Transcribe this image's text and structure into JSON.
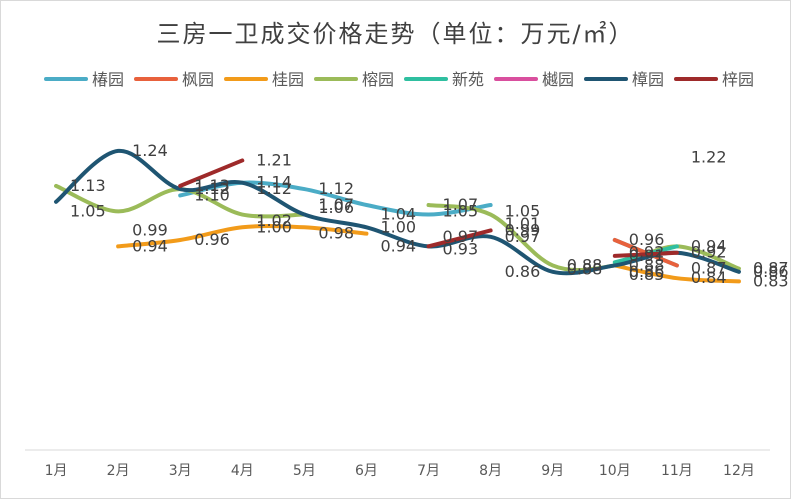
{
  "chart_data": {
    "type": "line",
    "title": "三房一卫成交价格走势（单位：万元/㎡）",
    "xlabel": "",
    "ylabel": "",
    "categories": [
      "1月",
      "2月",
      "3月",
      "4月",
      "5月",
      "6月",
      "7月",
      "8月",
      "9月",
      "10月",
      "11月",
      "12月"
    ],
    "ylim": [
      0.3,
      1.4
    ],
    "legend_position": "top",
    "grid": false,
    "series": [
      {
        "name": "椿园",
        "color": "#4bacc6",
        "values": [
          null,
          null,
          1.1,
          1.14,
          1.12,
          1.07,
          1.04,
          1.07,
          null,
          0.96,
          0.88,
          null
        ]
      },
      {
        "name": "枫园",
        "color": "#e8613c",
        "values": [
          null,
          null,
          null,
          null,
          null,
          null,
          null,
          null,
          null,
          0.96,
          0.88,
          null
        ]
      },
      {
        "name": "桂园",
        "color": "#f29b1a",
        "values": [
          null,
          0.94,
          0.96,
          1.0,
          1.0,
          0.98,
          null,
          null,
          null,
          0.88,
          0.84,
          0.83
        ]
      },
      {
        "name": "榕园",
        "color": "#9bbb59",
        "values": [
          1.13,
          1.05,
          1.12,
          1.04,
          1.04,
          null,
          1.07,
          1.04,
          0.88,
          0.88,
          0.94,
          0.87
        ]
      },
      {
        "name": "新苑",
        "color": "#2fbfa0",
        "values": [
          null,
          null,
          null,
          null,
          null,
          null,
          null,
          null,
          null,
          0.89,
          0.94,
          null
        ]
      },
      {
        "name": "樾园",
        "color": "#d94f9e",
        "values": [
          null,
          null,
          null,
          null,
          null,
          null,
          null,
          null,
          null,
          null,
          null,
          null
        ]
      },
      {
        "name": "樟园",
        "color": "#1f5572",
        "values": [
          1.08,
          1.24,
          1.12,
          1.14,
          1.04,
          1.0,
          0.94,
          0.97,
          0.86,
          0.88,
          0.92,
          0.86
        ]
      },
      {
        "name": "梓园",
        "color": "#9e2a2a",
        "values": [
          null,
          null,
          1.13,
          1.21,
          null,
          null,
          0.94,
          0.99,
          null,
          0.91,
          0.92,
          null
        ]
      }
    ],
    "data_labels": [
      {
        "text": "1.13",
        "month": 1,
        "value": 1.13
      },
      {
        "text": "1.05",
        "month": 1,
        "value": 1.05
      },
      {
        "text": "1.24",
        "month": 2,
        "value": 1.24
      },
      {
        "text": "0.99",
        "month": 2,
        "value": 0.99
      },
      {
        "text": "0.94",
        "month": 2,
        "value": 0.94
      },
      {
        "text": "1.13",
        "month": 3,
        "value": 1.13
      },
      {
        "text": "1.12",
        "month": 3,
        "value": 1.12
      },
      {
        "text": "1.10",
        "month": 3,
        "value": 1.1
      },
      {
        "text": "0.96",
        "month": 3,
        "value": 0.96
      },
      {
        "text": "1.21",
        "month": 4,
        "value": 1.21
      },
      {
        "text": "1.14",
        "month": 4,
        "value": 1.14
      },
      {
        "text": "1.12",
        "month": 4,
        "value": 1.12
      },
      {
        "text": "1.02",
        "month": 4,
        "value": 1.02
      },
      {
        "text": "1.00",
        "month": 4,
        "value": 1.0
      },
      {
        "text": "1.12",
        "month": 5,
        "value": 1.12
      },
      {
        "text": "1.07",
        "month": 5,
        "value": 1.07
      },
      {
        "text": "1.06",
        "month": 5,
        "value": 1.06
      },
      {
        "text": "0.98",
        "month": 5,
        "value": 0.98
      },
      {
        "text": "1.04",
        "month": 6,
        "value": 1.04
      },
      {
        "text": "1.00",
        "month": 6,
        "value": 1.0
      },
      {
        "text": "0.94",
        "month": 6,
        "value": 0.94
      },
      {
        "text": "1.07",
        "month": 7,
        "value": 1.07
      },
      {
        "text": "1.05",
        "month": 7,
        "value": 1.05
      },
      {
        "text": "0.97",
        "month": 7,
        "value": 0.97
      },
      {
        "text": "0.93",
        "month": 7,
        "value": 0.93
      },
      {
        "text": "1.05",
        "month": 8,
        "value": 1.05
      },
      {
        "text": "1.01",
        "month": 8,
        "value": 1.01
      },
      {
        "text": "0.99",
        "month": 8,
        "value": 0.99
      },
      {
        "text": "0.97",
        "month": 8,
        "value": 0.97
      },
      {
        "text": "0.86",
        "month": 8,
        "value": 0.86
      },
      {
        "text": "0.88",
        "month": 9,
        "value": 0.88
      },
      {
        "text": "0.88",
        "month": 9,
        "value": 0.88
      },
      {
        "text": "0.96",
        "month": 10,
        "value": 0.96
      },
      {
        "text": "0.92",
        "month": 10,
        "value": 0.92
      },
      {
        "text": "0.91",
        "month": 10,
        "value": 0.91
      },
      {
        "text": "0.88",
        "month": 10,
        "value": 0.88
      },
      {
        "text": "0.86",
        "month": 10,
        "value": 0.86
      },
      {
        "text": "0.85",
        "month": 10,
        "value": 0.85
      },
      {
        "text": "1.22",
        "month": 11,
        "value": 1.22
      },
      {
        "text": "0.94",
        "month": 11,
        "value": 0.94
      },
      {
        "text": "0.92",
        "month": 11,
        "value": 0.92
      },
      {
        "text": "0.87",
        "month": 11,
        "value": 0.87
      },
      {
        "text": "0.84",
        "month": 11,
        "value": 0.84
      },
      {
        "text": "0.87",
        "month": 12,
        "value": 0.87
      },
      {
        "text": "0.86",
        "month": 12,
        "value": 0.86
      },
      {
        "text": "0.83",
        "month": 12,
        "value": 0.83
      }
    ]
  }
}
